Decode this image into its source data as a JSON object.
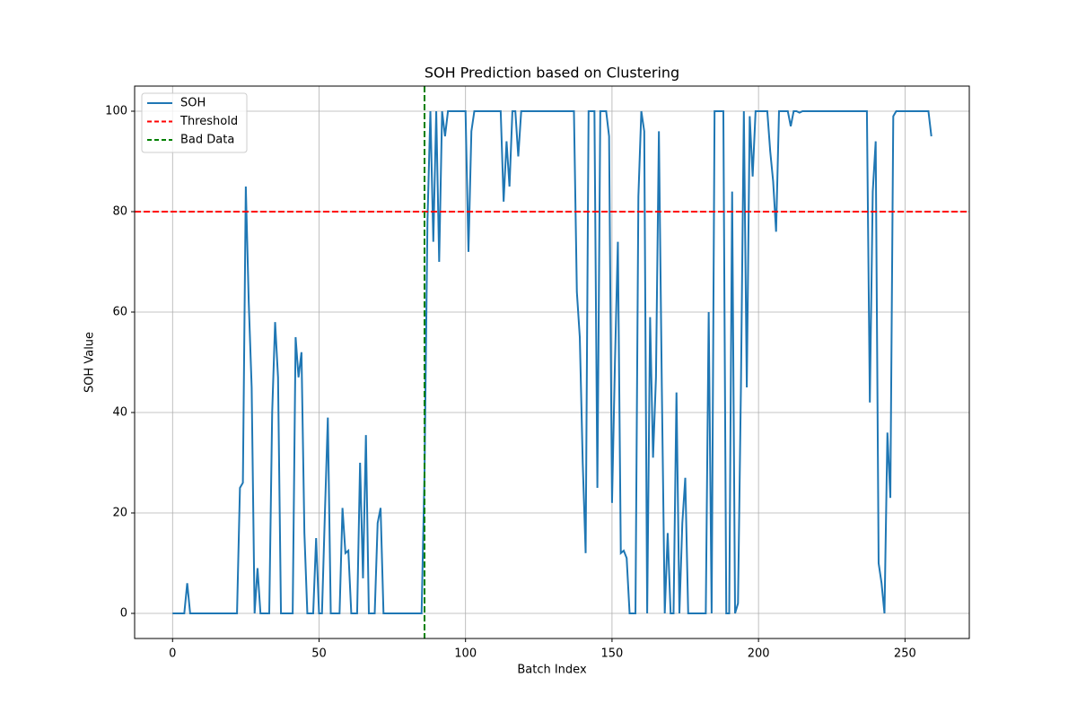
{
  "chart_data": {
    "type": "line",
    "title": "SOH Prediction based on Clustering",
    "x_label": "Batch Index",
    "y_label": "SOH Value",
    "x": [
      0,
      1,
      2,
      3,
      4,
      5,
      6,
      7,
      8,
      9,
      10,
      11,
      12,
      13,
      14,
      15,
      16,
      17,
      18,
      19,
      20,
      21,
      22,
      23,
      24,
      25,
      26,
      27,
      28,
      29,
      30,
      31,
      32,
      33,
      34,
      35,
      36,
      37,
      38,
      39,
      40,
      41,
      42,
      43,
      44,
      45,
      46,
      47,
      48,
      49,
      50,
      51,
      52,
      53,
      54,
      55,
      56,
      57,
      58,
      59,
      60,
      61,
      62,
      63,
      64,
      65,
      66,
      67,
      68,
      69,
      70,
      71,
      72,
      73,
      74,
      75,
      76,
      77,
      78,
      79,
      80,
      81,
      82,
      83,
      84,
      85,
      86,
      87,
      88,
      89,
      90,
      91,
      92,
      93,
      94,
      95,
      96,
      97,
      98,
      99,
      100,
      101,
      102,
      103,
      104,
      105,
      106,
      107,
      108,
      109,
      110,
      111,
      112,
      113,
      114,
      115,
      116,
      117,
      118,
      119,
      120,
      121,
      122,
      123,
      124,
      125,
      126,
      127,
      128,
      129,
      130,
      131,
      132,
      133,
      134,
      135,
      136,
      137,
      138,
      139,
      140,
      141,
      142,
      143,
      144,
      145,
      146,
      147,
      148,
      149,
      150,
      151,
      152,
      153,
      154,
      155,
      156,
      157,
      158,
      159,
      160,
      161,
      162,
      163,
      164,
      165,
      166,
      167,
      168,
      169,
      170,
      171,
      172,
      173,
      174,
      175,
      176,
      177,
      178,
      179,
      180,
      181,
      182,
      183,
      184,
      185,
      186,
      187,
      188,
      189,
      190,
      191,
      192,
      193,
      194,
      195,
      196,
      197,
      198,
      199,
      200,
      201,
      202,
      203,
      204,
      205,
      206,
      207,
      208,
      209,
      210,
      211,
      212,
      213,
      214,
      215,
      216,
      217,
      218,
      219,
      220,
      221,
      222,
      223,
      224,
      225,
      226,
      227,
      228,
      229,
      230,
      231,
      232,
      233,
      234,
      235,
      236,
      237,
      238,
      239,
      240,
      241,
      242,
      243,
      244,
      245,
      246,
      247,
      248,
      249,
      250,
      251,
      252,
      253,
      254,
      255,
      256,
      257,
      258,
      259
    ],
    "series": [
      {
        "name": "SOH",
        "color": "#1f77b4",
        "values": [
          0,
          0,
          0,
          0,
          0,
          6,
          0,
          0,
          0,
          0,
          0,
          0,
          0,
          0,
          0,
          0,
          0,
          0,
          0,
          0,
          0,
          0,
          0,
          25,
          26,
          85,
          62,
          45,
          0,
          9,
          0,
          0,
          0,
          0,
          40,
          58,
          47,
          0,
          0,
          0,
          0,
          0,
          55,
          47,
          52,
          16,
          0,
          0,
          0,
          15,
          0,
          0,
          20,
          39,
          0,
          0,
          0,
          0,
          21,
          12,
          12.5,
          0,
          0,
          0,
          30,
          7,
          35.5,
          0,
          0,
          0,
          18,
          21,
          0,
          0,
          0,
          0,
          0,
          0,
          0,
          0,
          0,
          0,
          0,
          0,
          0,
          0,
          28,
          78,
          100,
          74,
          100,
          70,
          100,
          95,
          100,
          100,
          100,
          100,
          100,
          100,
          100,
          72,
          96,
          100,
          100,
          100,
          100,
          100,
          100,
          100,
          100,
          100,
          100,
          82,
          94,
          85,
          100,
          100,
          91,
          100,
          100,
          100,
          100,
          100,
          100,
          100,
          100,
          100,
          100,
          100,
          100,
          100,
          100,
          100,
          100,
          100,
          100,
          100,
          64,
          55,
          30,
          12,
          100,
          100,
          100,
          25,
          100,
          100,
          100,
          95,
          22,
          50,
          74,
          12,
          12.5,
          11,
          0,
          0,
          0,
          83,
          100,
          96,
          0,
          59,
          31,
          47,
          96,
          45,
          0,
          16,
          0,
          0,
          44,
          0,
          18,
          27,
          0,
          0,
          0,
          0,
          0,
          0,
          0,
          60,
          0,
          100,
          100,
          100,
          100,
          0,
          0,
          84,
          0,
          2,
          45,
          100,
          45,
          99,
          87,
          100,
          100,
          100,
          100,
          100,
          92,
          86,
          76,
          100,
          100,
          100,
          100,
          97,
          100,
          100,
          99.7,
          100,
          100,
          100,
          100,
          100,
          100,
          100,
          100,
          100,
          100,
          100,
          100,
          100,
          100,
          100,
          100,
          100,
          100,
          100,
          100,
          100,
          100,
          100,
          42,
          84,
          94,
          10,
          6,
          0,
          36,
          23,
          99,
          100,
          100,
          100,
          100,
          100,
          100,
          100,
          100,
          100,
          100,
          100,
          100,
          95
        ]
      }
    ],
    "hlines": [
      {
        "name": "Threshold",
        "value": 80,
        "color": "#ff0000"
      }
    ],
    "vlines": [
      {
        "name": "Bad Data",
        "value": 86,
        "color": "#008000"
      }
    ],
    "xlim": [
      -12.95,
      271.95
    ],
    "ylim": [
      -5,
      105
    ],
    "xticks": [
      0,
      50,
      100,
      150,
      200,
      250
    ],
    "yticks": [
      0,
      20,
      40,
      60,
      80,
      100
    ],
    "grid": true,
    "legend": "upper left"
  }
}
